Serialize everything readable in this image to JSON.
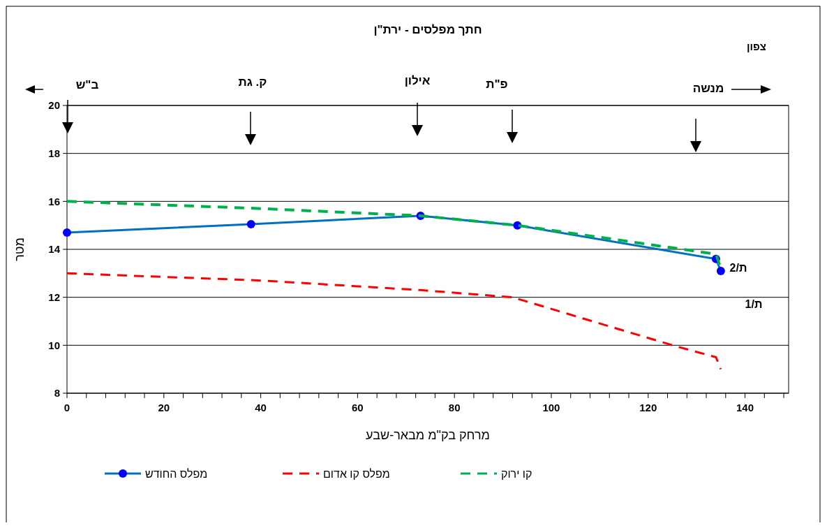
{
  "chart_data": {
    "type": "line",
    "title": "חתך מפלסים - ירת\"ן",
    "xlabel": "מרחק בק\"מ מבאר-שבע",
    "ylabel": "מטר",
    "xlim": [
      0,
      149
    ],
    "xticks": [
      0,
      {
        "value": 4,
        "label": null
      },
      {
        "value": 8,
        "label": null
      },
      {
        "value": 12,
        "label": null
      },
      {
        "value": 16,
        "label": null
      },
      20,
      {
        "value": 24,
        "label": null
      },
      {
        "value": 28,
        "label": null
      },
      {
        "value": 32,
        "label": null
      },
      {
        "value": 36,
        "label": null
      },
      40,
      {
        "value": 44,
        "label": null
      },
      {
        "value": 48,
        "label": null
      },
      {
        "value": 52,
        "label": null
      },
      {
        "value": 56,
        "label": null
      },
      60,
      {
        "value": 64,
        "label": null
      },
      {
        "value": 68,
        "label": null
      },
      {
        "value": 72,
        "label": null
      },
      {
        "value": 76,
        "label": null
      },
      80,
      {
        "value": 84,
        "label": null
      },
      {
        "value": 88,
        "label": null
      },
      {
        "value": 92,
        "label": null
      },
      {
        "value": 96,
        "label": null
      },
      100,
      {
        "value": 104,
        "label": null
      },
      {
        "value": 108,
        "label": null
      },
      {
        "value": 112,
        "label": null
      },
      {
        "value": 116,
        "label": null
      },
      120,
      {
        "value": 124,
        "label": null
      },
      {
        "value": 128,
        "label": null
      },
      {
        "value": 132,
        "label": null
      },
      {
        "value": 136,
        "label": null
      },
      140,
      {
        "value": 144,
        "label": null
      },
      {
        "value": 148,
        "label": null
      }
    ],
    "ylim": [
      8,
      20
    ],
    "yticks": [
      8,
      10,
      12,
      14,
      16,
      18,
      20
    ],
    "grid": "y",
    "legend": "bottom",
    "series": [
      {
        "name": "מפלס החודש",
        "color": "#0070c0",
        "marker": "circle",
        "line_style": "solid",
        "x": [
          0,
          38,
          73,
          93,
          134,
          135
        ],
        "values": [
          14.7,
          15.05,
          15.4,
          15.0,
          13.6,
          13.1
        ]
      },
      {
        "name": "מפלס קו אדום",
        "color": "#ff0000",
        "marker": "none",
        "line_style": "dashed",
        "x": [
          0,
          40,
          73,
          92,
          125,
          134,
          135
        ],
        "values": [
          13.0,
          12.7,
          12.3,
          12.0,
          10.0,
          9.5,
          9.0
        ]
      },
      {
        "name": "קו ירוק",
        "color": "#00b050",
        "marker": "none",
        "line_style": "dashed",
        "x": [
          0,
          40,
          73,
          93,
          134,
          135
        ],
        "values": [
          16.0,
          15.7,
          15.4,
          15.0,
          13.8,
          13.2
        ]
      }
    ],
    "annotations": [
      "צפון",
      "ב\"ש",
      "ק. גת",
      "אילון",
      "פ\"ת",
      "מנשה",
      "ת/2",
      "ת/1"
    ]
  }
}
